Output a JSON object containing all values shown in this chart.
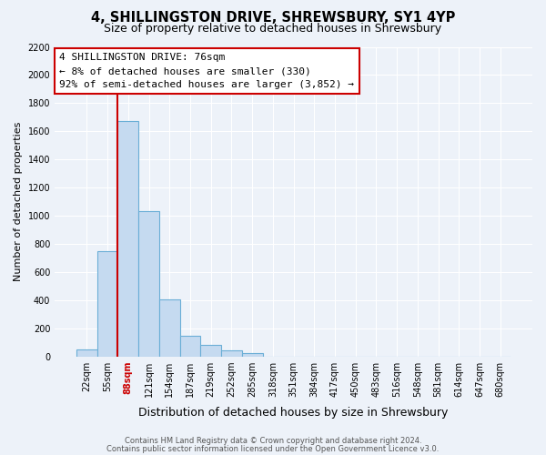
{
  "title": "4, SHILLINGSTON DRIVE, SHREWSBURY, SY1 4YP",
  "subtitle": "Size of property relative to detached houses in Shrewsbury",
  "xlabel": "Distribution of detached houses by size in Shrewsbury",
  "ylabel": "Number of detached properties",
  "bin_labels": [
    "22sqm",
    "55sqm",
    "88sqm",
    "121sqm",
    "154sqm",
    "187sqm",
    "219sqm",
    "252sqm",
    "285sqm",
    "318sqm",
    "351sqm",
    "384sqm",
    "417sqm",
    "450sqm",
    "483sqm",
    "516sqm",
    "548sqm",
    "581sqm",
    "614sqm",
    "647sqm",
    "680sqm"
  ],
  "bar_heights": [
    50,
    745,
    1670,
    1035,
    405,
    145,
    78,
    40,
    25,
    0,
    0,
    0,
    0,
    0,
    0,
    0,
    0,
    0,
    0,
    0,
    0
  ],
  "bar_color": "#c5daf0",
  "bar_edgecolor": "#6aaed6",
  "bar_linewidth": 0.8,
  "ylim_max": 2200,
  "yticks": [
    0,
    200,
    400,
    600,
    800,
    1000,
    1200,
    1400,
    1600,
    1800,
    2000,
    2200
  ],
  "vline_index": 2,
  "vline_color": "#cc0000",
  "annotation_text": "4 SHILLINGSTON DRIVE: 76sqm\n← 8% of detached houses are smaller (330)\n92% of semi-detached houses are larger (3,852) →",
  "annotation_box_facecolor": "#ffffff",
  "annotation_box_edgecolor": "#cc0000",
  "background_color": "#edf2f9",
  "grid_color": "#ffffff",
  "title_fontsize": 10.5,
  "subtitle_fontsize": 9,
  "xlabel_fontsize": 9,
  "ylabel_fontsize": 8,
  "tick_fontsize": 7,
  "annotation_fontsize": 8,
  "footer_fontsize": 6,
  "footer_line1": "Contains HM Land Registry data © Crown copyright and database right 2024.",
  "footer_line2": "Contains public sector information licensed under the Open Government Licence v3.0."
}
